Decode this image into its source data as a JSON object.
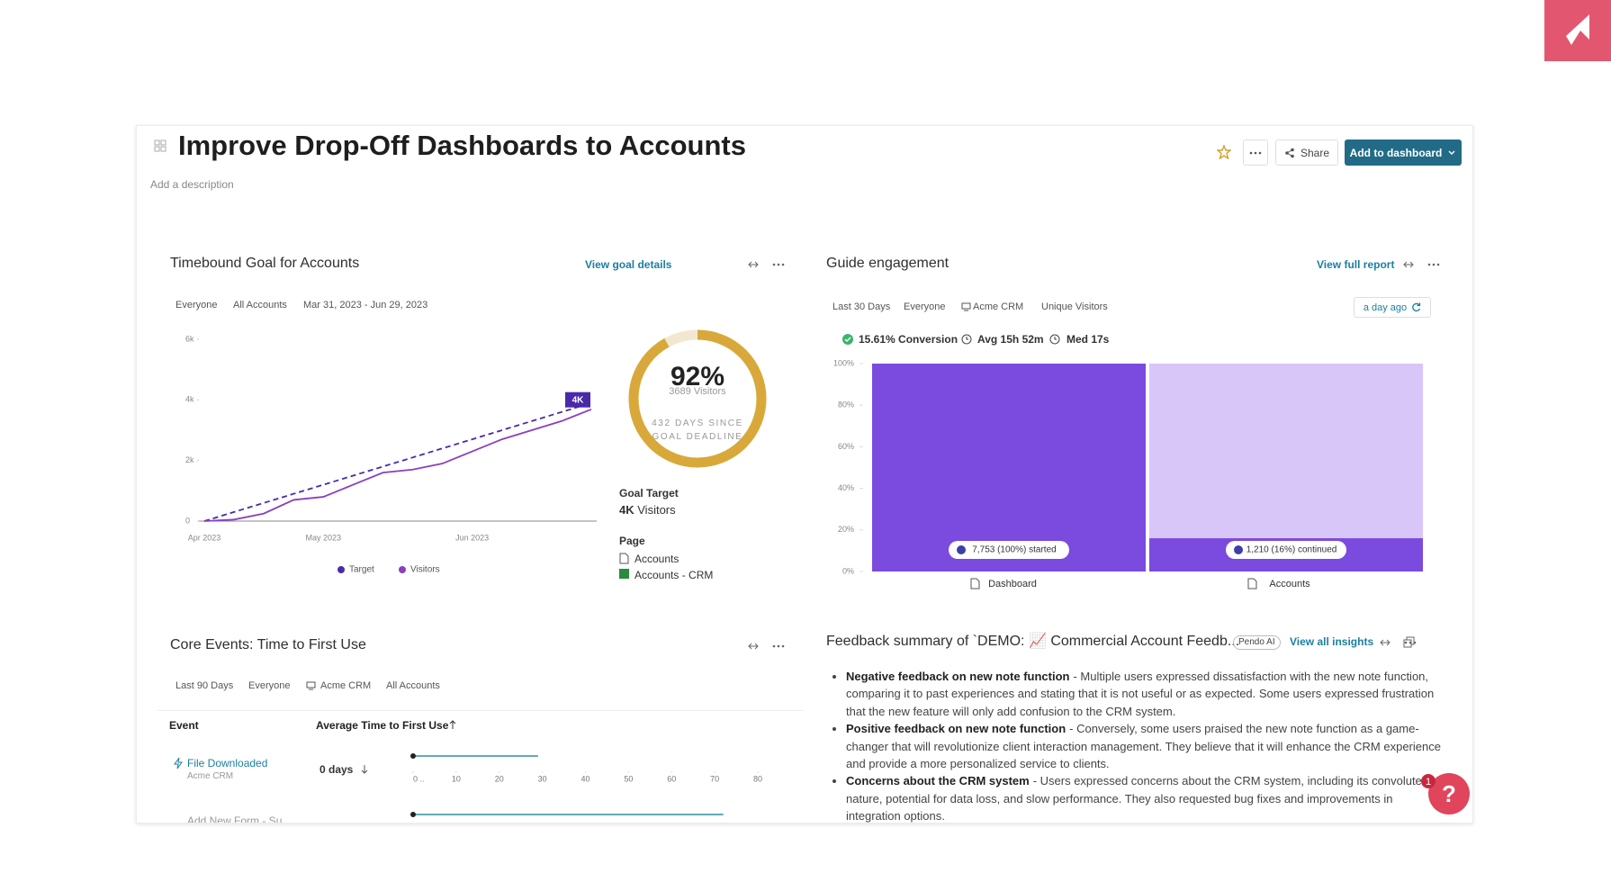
{
  "header": {
    "title": "Improve Drop-Off Dashboards to Accounts",
    "description": "Add a description",
    "share": "Share",
    "add_button": "Add to dashboard"
  },
  "goal": {
    "title": "Timebound Goal for Accounts",
    "link": "View goal details",
    "filters": [
      "Everyone",
      "All Accounts",
      "Mar 31, 2023 - Jun 29, 2023"
    ],
    "chart": {
      "type": "line",
      "categories": [
        "Apr 2023",
        null,
        null,
        null,
        "May 2023",
        null,
        null,
        null,
        null,
        "Jun 2023",
        null,
        null,
        null,
        null
      ],
      "ylim": [
        0,
        6000
      ],
      "yticks": [
        0,
        {
          "value": 2000,
          "label": "2k"
        },
        {
          "value": 4000,
          "label": "4k"
        },
        {
          "value": 6000,
          "label": "6k"
        }
      ],
      "series": [
        {
          "name": "Target",
          "color": "#4a2aa8",
          "dashed": true,
          "values": [
            0,
            300,
            600,
            900,
            1200,
            1500,
            1800,
            2100,
            2400,
            2700,
            3000,
            3300,
            3600,
            3900
          ]
        },
        {
          "name": "Visitors",
          "color": "#8a3fc0",
          "dashed": false,
          "values": [
            0,
            50,
            250,
            700,
            800,
            1200,
            1600,
            1700,
            1900,
            2300,
            2700,
            3000,
            3300,
            3689
          ]
        }
      ],
      "end_badge": "4K"
    },
    "gauge": {
      "type": "donut",
      "value": 92,
      "value_label": "92%",
      "color": "#d8a93a",
      "subtitle": "3689 Visitors",
      "note": "432 DAYS SINCE GOAL DEADLINE"
    },
    "target_label": "Goal Target",
    "target_value": "4K",
    "target_unit": "Visitors",
    "page_label": "Page",
    "pages": [
      "Accounts",
      "Accounts - CRM"
    ]
  },
  "guide": {
    "title": "Guide engagement",
    "link": "View full report",
    "filters": [
      "Last 30 Days",
      "Everyone",
      "Acme CRM",
      "Unique Visitors"
    ],
    "refreshed": "a day ago",
    "stats": [
      "15.61% Conversion",
      "Avg 15h 52m",
      "Med 17s"
    ],
    "chart": {
      "type": "bar",
      "categories": [
        "Dashboard",
        "Accounts"
      ],
      "values": [
        100,
        16
      ],
      "value_labels": [
        "7,753 (100%) started",
        "1,210 (16%) continued"
      ],
      "color": "#7b4ade",
      "track_color": "#d9c6f8",
      "ylim": [
        0,
        100
      ],
      "yticks": [
        {
          "value": 0,
          "label": "0%"
        },
        {
          "value": 20,
          "label": "20%"
        },
        {
          "value": 40,
          "label": "40%"
        },
        {
          "value": 60,
          "label": "60%"
        },
        {
          "value": 80,
          "label": "80%"
        },
        {
          "value": 100,
          "label": "100%"
        }
      ]
    }
  },
  "events": {
    "title": "Core Events: Time to First Use",
    "filters": [
      "Last 90 Days",
      "Everyone",
      "Acme CRM",
      "All Accounts"
    ],
    "columns": [
      "Event",
      "Average Time to First Use"
    ],
    "rows": [
      {
        "name": "File Downloaded",
        "app": "Acme CRM",
        "time": "0 days",
        "range": [
          0,
          29
        ]
      },
      {
        "name": "Add New Form - Su...",
        "range": [
          0,
          72
        ]
      }
    ],
    "axis": {
      "type": "range",
      "xlim": [
        0,
        80
      ],
      "xticks": [
        {
          "value": 0,
          "label": "0 .."
        },
        10,
        20,
        30,
        40,
        50,
        60,
        70,
        80
      ],
      "color": "#2e8f9c"
    }
  },
  "feedback": {
    "title": "Feedback summary of `DEMO: 📈 Commercial Account Feedb...",
    "badge": "Pendo AI",
    "link": "View all insights",
    "items": [
      {
        "head": "Negative feedback on new note function",
        "text": "- Multiple users expressed dissatisfaction with the new note function, comparing it to past experiences and stating that it is not useful or as expected. Some users expressed frustration that the new feature will only add confusion to the CRM system."
      },
      {
        "head": "Positive feedback on new note function",
        "text": "- Conversely, some users praised the new note function as a game-changer that will revolutionize client interaction management. They believe that it will enhance the CRM experience and provide a more personalized service to clients."
      },
      {
        "head": "Concerns about the CRM system",
        "text": "- Users expressed concerns about the CRM system, including its convoluted nature, potential for data loss, and slow performance. They also requested bug fixes and improvements in integration options."
      }
    ]
  },
  "help": {
    "badge": "1",
    "label": "?"
  }
}
